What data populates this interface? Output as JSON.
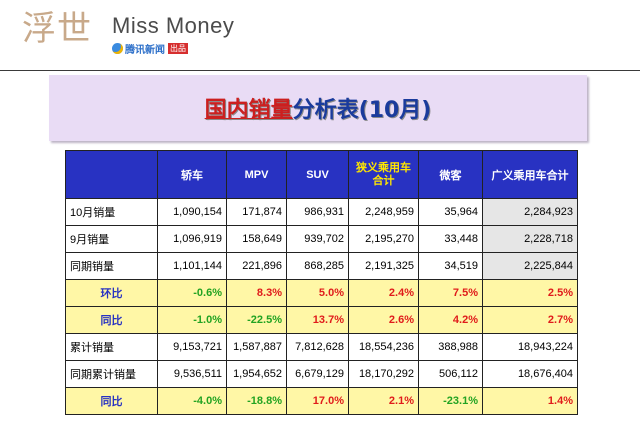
{
  "header": {
    "brand_cn": "浮世",
    "brand_en": "Miss Money",
    "sub_brand": "腾讯新闻",
    "sub_tag": "出品"
  },
  "title": {
    "part1": "国内销量",
    "part2": "分析表(10月)"
  },
  "table": {
    "columns": [
      "",
      "轿车",
      "MPV",
      "SUV",
      "狭义乘用车合计",
      "微客",
      "广义乘用车合计"
    ],
    "rows": [
      {
        "label": "10月销量",
        "values": [
          "1,090,154",
          "171,874",
          "986,931",
          "2,248,959",
          "35,964",
          "2,284,923"
        ]
      },
      {
        "label": "9月销量",
        "values": [
          "1,096,919",
          "158,649",
          "939,702",
          "2,195,270",
          "33,448",
          "2,228,718"
        ]
      },
      {
        "label": "同期销量",
        "values": [
          "1,101,144",
          "221,896",
          "868,285",
          "2,191,325",
          "34,519",
          "2,225,844"
        ]
      },
      {
        "label": "环比",
        "values": [
          "-0.6%",
          "8.3%",
          "5.0%",
          "2.4%",
          "7.5%",
          "2.5%"
        ]
      },
      {
        "label": "同比",
        "values": [
          "-1.0%",
          "-22.5%",
          "13.7%",
          "2.6%",
          "4.2%",
          "2.7%"
        ]
      },
      {
        "label": "累计销量",
        "values": [
          "9,153,721",
          "1,587,887",
          "7,812,628",
          "18,554,236",
          "388,988",
          "18,943,224"
        ]
      },
      {
        "label": "同期累计销量",
        "values": [
          "9,536,511",
          "1,954,652",
          "6,679,129",
          "18,170,292",
          "506,112",
          "18,676,404"
        ]
      },
      {
        "label": "同比",
        "values": [
          "-4.0%",
          "-18.8%",
          "17.0%",
          "2.1%",
          "-23.1%",
          "1.4%"
        ]
      }
    ]
  },
  "colors": {
    "header_blue": "#2832c2",
    "row_yellow": "#fff7a6",
    "positive_red": "#e01b1b",
    "negative_green": "#22a322",
    "title_panel": "#e9dcf5"
  }
}
